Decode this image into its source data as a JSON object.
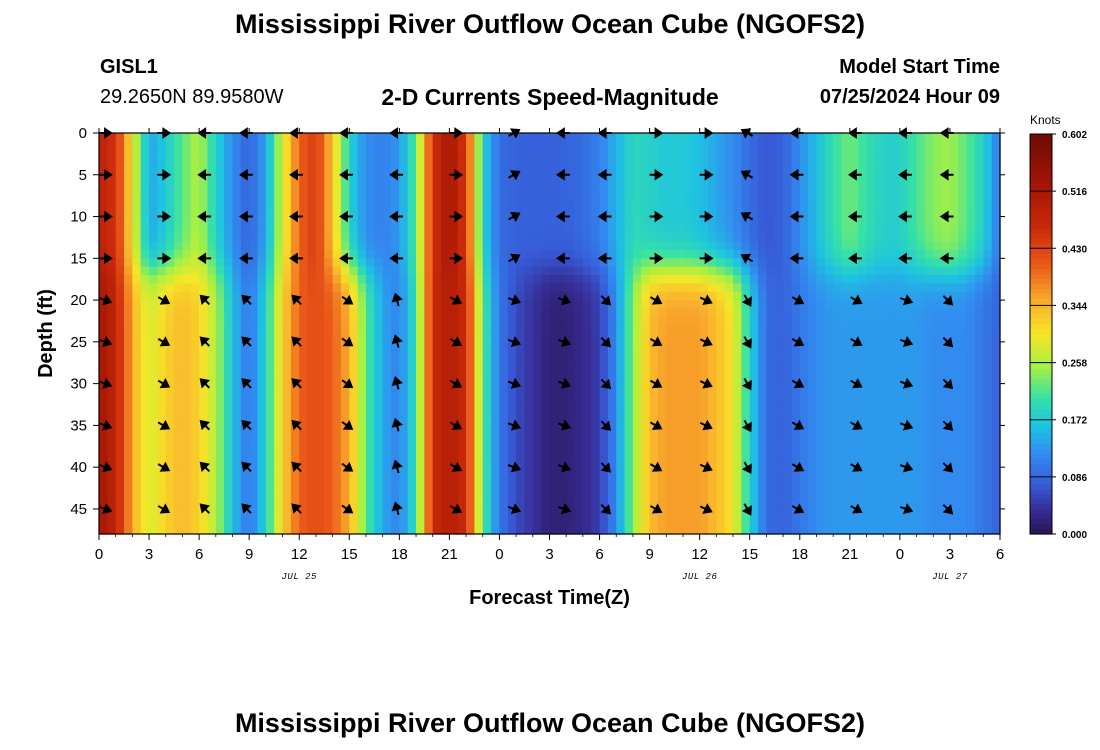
{
  "header": {
    "title": "Mississippi River Outflow Ocean Cube (NGOFS2)",
    "station": "GISL1",
    "coords": "29.2650N  89.9580W",
    "subtitle": "2-D Currents Speed-Magnitude",
    "start_label": "Model Start Time",
    "start_value": "07/25/2024 Hour 09"
  },
  "footer": {
    "title": "Mississippi River Outflow Ocean Cube (NGOFS2)"
  },
  "chart_data": {
    "type": "heatmap",
    "title": "2-D Currents Speed-Magnitude",
    "xlabel": "Forecast Time(Z)",
    "ylabel": "Depth (ft)",
    "x_tick_labels": [
      "0",
      "3",
      "6",
      "9",
      "12",
      "15",
      "18",
      "21",
      "0",
      "3",
      "6",
      "9",
      "12",
      "15",
      "18",
      "21",
      "0",
      "3",
      "6"
    ],
    "x_range_hours": [
      0,
      54
    ],
    "date_labels": [
      {
        "text": "JUL 25",
        "hour": 12
      },
      {
        "text": "JUL 26",
        "hour": 36
      },
      {
        "text": "JUL 27",
        "hour": 51
      }
    ],
    "y_ticks": [
      0,
      5,
      10,
      15,
      20,
      25,
      30,
      35,
      40,
      45
    ],
    "ylim": [
      0,
      48
    ],
    "colorbar": {
      "units": "Knots",
      "ticks": [
        0.0,
        0.086,
        0.172,
        0.258,
        0.344,
        0.43,
        0.516,
        0.602
      ],
      "tick_labels": [
        "0.000",
        "0.086",
        "0.172",
        "0.258",
        "0.344",
        "0.430",
        "0.516",
        "0.602"
      ]
    },
    "hours": [
      0,
      1,
      2,
      3,
      4,
      5,
      6,
      7,
      8,
      9,
      10,
      11,
      12,
      13,
      14,
      15,
      16,
      17,
      18,
      19,
      20,
      21,
      22,
      23,
      24,
      25,
      26,
      27,
      28,
      29,
      30,
      31,
      32,
      33,
      34,
      35,
      36,
      37,
      38,
      39,
      40,
      41,
      42,
      43,
      44,
      45,
      46,
      47,
      48,
      49,
      50,
      51,
      52,
      53,
      54
    ],
    "speed_upper_knots": [
      0.48,
      0.45,
      0.3,
      0.14,
      0.17,
      0.22,
      0.26,
      0.18,
      0.12,
      0.08,
      0.14,
      0.28,
      0.4,
      0.44,
      0.33,
      0.18,
      0.12,
      0.11,
      0.13,
      0.22,
      0.45,
      0.52,
      0.44,
      0.18,
      0.09,
      0.08,
      0.08,
      0.08,
      0.08,
      0.09,
      0.11,
      0.15,
      0.19,
      0.18,
      0.17,
      0.17,
      0.16,
      0.14,
      0.12,
      0.09,
      0.07,
      0.08,
      0.12,
      0.16,
      0.2,
      0.23,
      0.2,
      0.18,
      0.18,
      0.21,
      0.24,
      0.25,
      0.22,
      0.18,
      0.1
    ],
    "speed_lower_knots": [
      0.52,
      0.48,
      0.35,
      0.28,
      0.32,
      0.34,
      0.32,
      0.26,
      0.16,
      0.1,
      0.18,
      0.32,
      0.4,
      0.42,
      0.4,
      0.35,
      0.22,
      0.14,
      0.11,
      0.2,
      0.46,
      0.5,
      0.46,
      0.22,
      0.1,
      0.06,
      0.04,
      0.02,
      0.02,
      0.03,
      0.05,
      0.12,
      0.24,
      0.34,
      0.36,
      0.36,
      0.36,
      0.34,
      0.3,
      0.18,
      0.09,
      0.08,
      0.1,
      0.12,
      0.13,
      0.13,
      0.13,
      0.13,
      0.13,
      0.13,
      0.12,
      0.12,
      0.12,
      0.1,
      0.08
    ],
    "arrow_depths_ft": [
      0,
      5,
      10,
      15,
      20,
      25,
      30,
      35,
      40,
      45
    ],
    "arrow_hours": [
      0,
      3.5,
      6,
      8.5,
      11.5,
      14.5,
      17.5,
      21,
      24.5,
      27.5,
      30,
      33,
      36,
      38.5,
      41.5,
      45,
      48,
      50.5
    ],
    "arrow_direction_deg_upper": [
      0,
      0,
      180,
      180,
      180,
      180,
      180,
      0,
      30,
      180,
      180,
      0,
      0,
      150,
      180,
      180,
      180,
      180
    ],
    "arrow_direction_deg_lower": [
      -20,
      -30,
      135,
      135,
      135,
      -35,
      105,
      -30,
      -20,
      -20,
      -45,
      -30,
      -25,
      -60,
      -30,
      -30,
      -20,
      -45
    ]
  }
}
